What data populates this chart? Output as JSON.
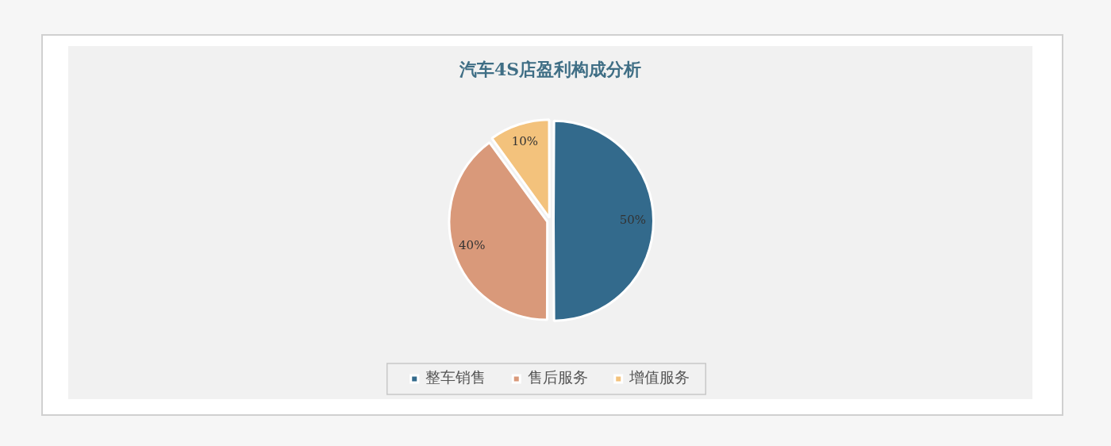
{
  "chart_data": {
    "type": "pie",
    "title": "汽车4S店盈利构成分析",
    "categories": [
      "整车销售",
      "售后服务",
      "增值服务"
    ],
    "values": [
      50,
      40,
      10
    ],
    "colors": [
      "#336a8c",
      "#d9997a",
      "#f3c27c"
    ],
    "value_labels": [
      "50%",
      "40%",
      "10%"
    ],
    "legend": "bottom"
  }
}
